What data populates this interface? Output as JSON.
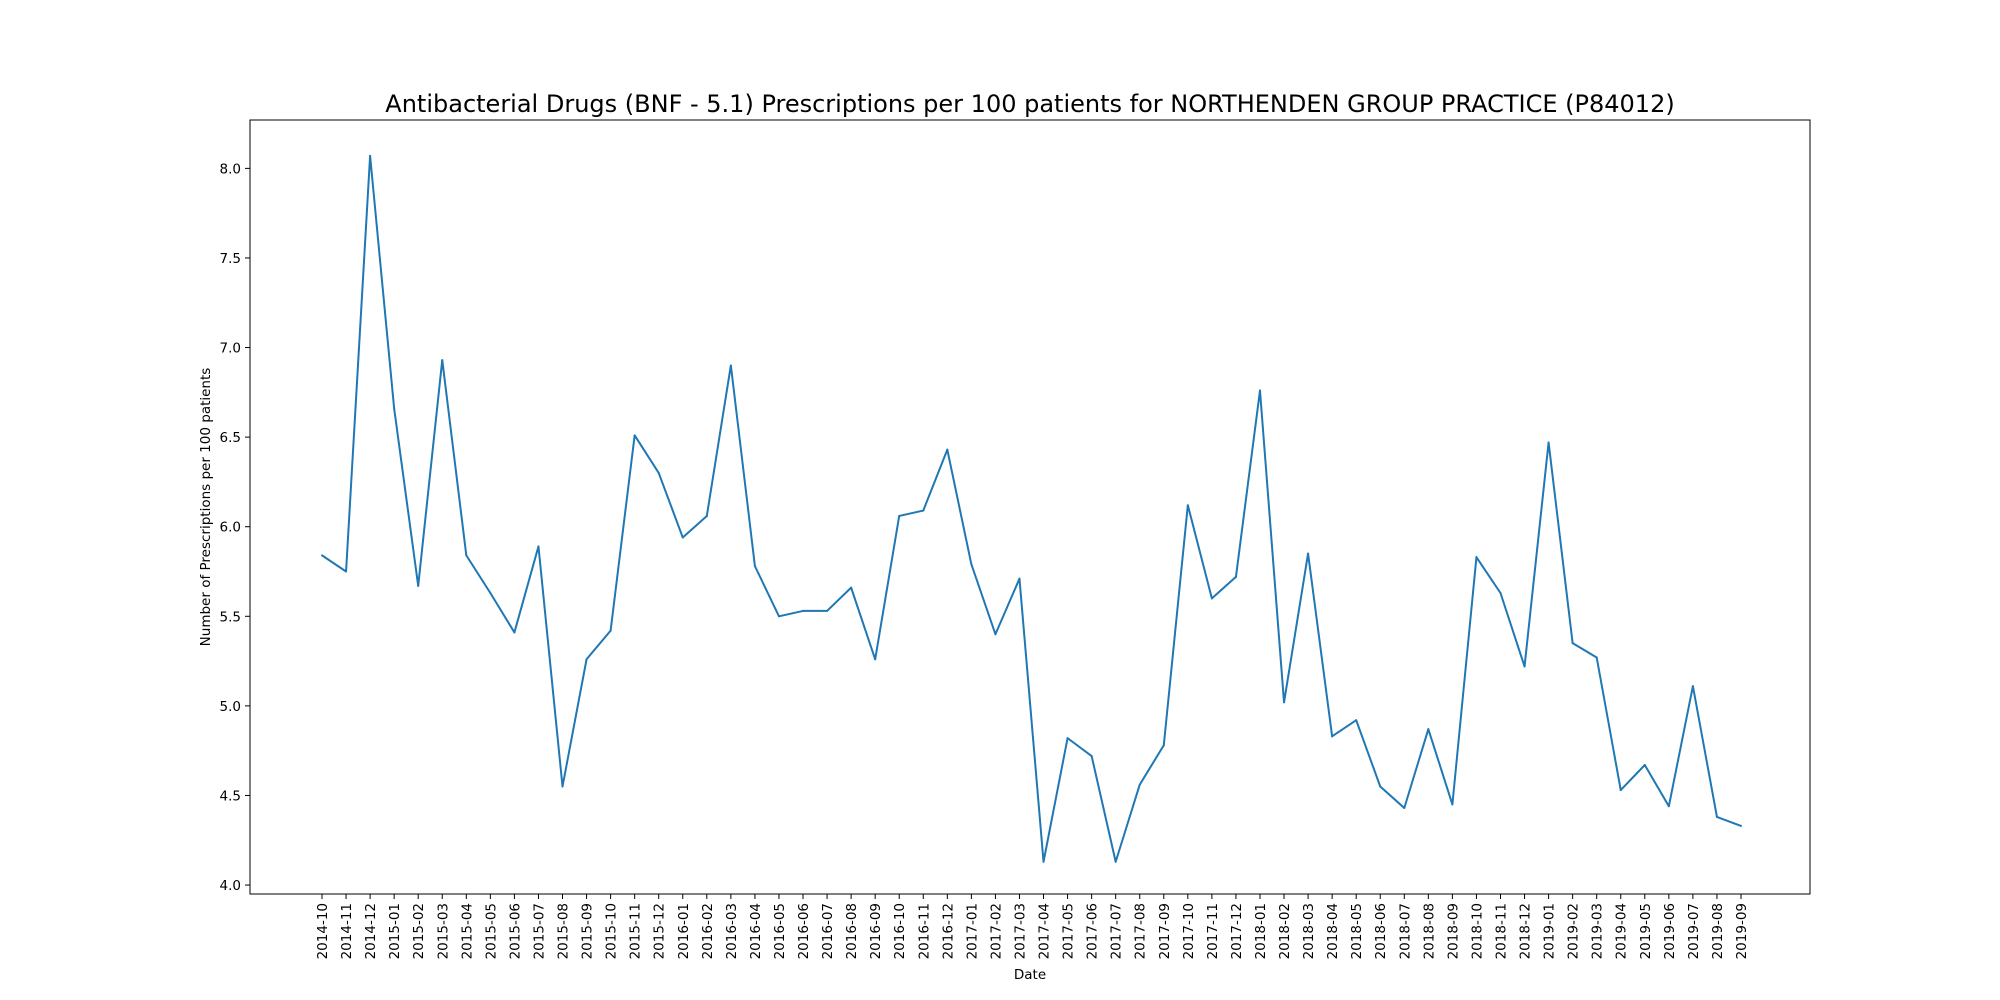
{
  "chart_data": {
    "type": "line",
    "title": "Antibacterial Drugs (BNF - 5.1) Prescriptions per 100 patients for NORTHENDEN GROUP PRACTICE (P84012)",
    "xlabel": "Date",
    "ylabel": "Number of Prescriptions per 100 patients",
    "ylim": [
      3.95,
      8.27
    ],
    "yticks": [
      "4.0",
      "4.5",
      "5.0",
      "5.5",
      "6.0",
      "6.5",
      "7.0",
      "7.5",
      "8.0"
    ],
    "grid": false,
    "line_color": "#1f77b4",
    "x": [
      "2014-10",
      "2014-11",
      "2014-12",
      "2015-01",
      "2015-02",
      "2015-03",
      "2015-04",
      "2015-05",
      "2015-06",
      "2015-07",
      "2015-08",
      "2015-09",
      "2015-10",
      "2015-11",
      "2015-12",
      "2016-01",
      "2016-02",
      "2016-03",
      "2016-04",
      "2016-05",
      "2016-06",
      "2016-07",
      "2016-08",
      "2016-09",
      "2016-10",
      "2016-11",
      "2016-12",
      "2017-01",
      "2017-02",
      "2017-03",
      "2017-04",
      "2017-05",
      "2017-06",
      "2017-07",
      "2017-08",
      "2017-09",
      "2017-10",
      "2017-11",
      "2017-12",
      "2018-01",
      "2018-02",
      "2018-03",
      "2018-04",
      "2018-05",
      "2018-06",
      "2018-07",
      "2018-08",
      "2018-09",
      "2018-10",
      "2018-11",
      "2018-12",
      "2019-01",
      "2019-02",
      "2019-03",
      "2019-04",
      "2019-05",
      "2019-06",
      "2019-07",
      "2019-08",
      "2019-09"
    ],
    "series": [
      {
        "values": [
          5.84,
          5.75,
          8.07,
          6.66,
          5.67,
          6.93,
          5.84,
          5.63,
          5.41,
          5.89,
          4.55,
          5.26,
          5.42,
          6.51,
          6.3,
          5.94,
          6.06,
          6.9,
          5.78,
          5.5,
          5.53,
          5.53,
          5.66,
          5.26,
          6.06,
          6.09,
          6.43,
          5.79,
          5.4,
          5.71,
          4.13,
          4.82,
          4.72,
          4.13,
          4.56,
          4.78,
          6.12,
          5.6,
          5.72,
          6.76,
          5.02,
          5.85,
          4.83,
          4.92,
          4.55,
          4.43,
          4.87,
          4.45,
          5.83,
          5.63,
          5.22,
          6.47,
          5.35,
          5.27,
          4.53,
          4.67,
          4.44,
          5.11,
          4.38,
          4.33
        ]
      }
    ]
  }
}
